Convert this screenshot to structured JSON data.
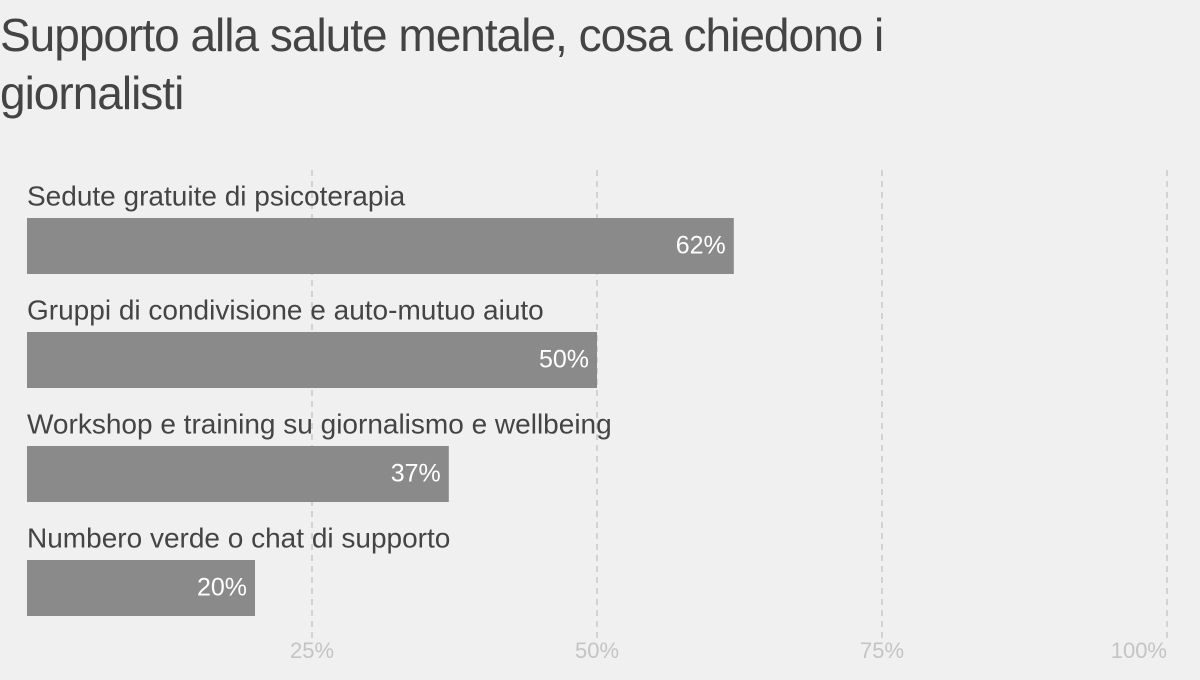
{
  "chart_data": {
    "type": "bar",
    "orientation": "horizontal",
    "title": "Supporto alla salute mentale, cosa chiedono i giornalisti",
    "categories": [
      "Sedute gratuite di psicoterapia",
      "Gruppi di condivisione e auto-mutuo aiuto",
      "Workshop e training su giornalismo e wellbeing",
      "Numbero verde o chat di supporto"
    ],
    "values": [
      62,
      50,
      37,
      20
    ],
    "value_labels": [
      "62%",
      "50%",
      "37%",
      "20%"
    ],
    "color": "#8a8a8a",
    "xlim": [
      0,
      100
    ],
    "xticks": [
      {
        "value": 25,
        "label": "25%"
      },
      {
        "value": 50,
        "label": "50%"
      },
      {
        "value": 75,
        "label": "75%"
      },
      {
        "value": 100,
        "label": "100%"
      }
    ],
    "grid": true
  }
}
